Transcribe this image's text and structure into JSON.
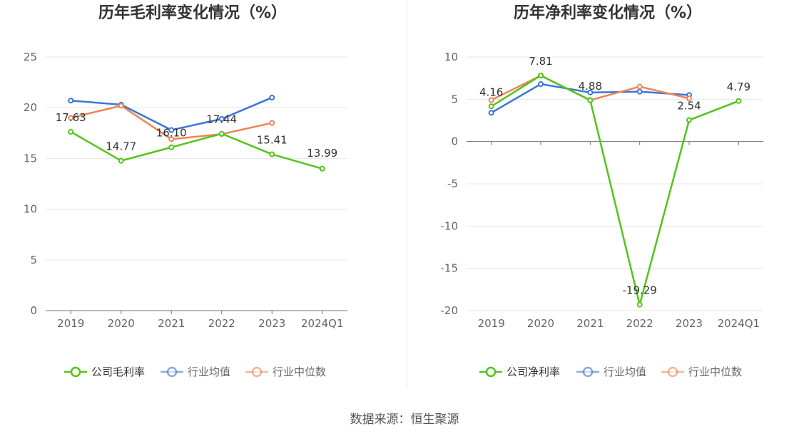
{
  "source_text": "数据来源：恒生聚源",
  "chart_data": [
    {
      "type": "line",
      "title": "历年毛利率变化情况（%）",
      "categories": [
        "2019",
        "2020",
        "2021",
        "2022",
        "2023",
        "2024Q1"
      ],
      "ylim": [
        0,
        25
      ],
      "yticks": [
        0,
        5,
        10,
        15,
        20,
        25
      ],
      "grid": true,
      "legend_position": "bottom",
      "series": [
        {
          "name": "公司毛利率",
          "color": "#52c41a",
          "values": [
            17.63,
            14.77,
            16.1,
            17.44,
            15.41,
            13.99
          ],
          "labels": [
            "17.63",
            "14.77",
            "16.10",
            "17.44",
            "15.41",
            "13.99"
          ]
        },
        {
          "name": "行业均值",
          "color": "#3a75d9",
          "values": [
            20.7,
            20.3,
            17.8,
            18.9,
            21.0,
            null
          ]
        },
        {
          "name": "行业中位数",
          "color": "#ee8458",
          "values": [
            19.0,
            20.2,
            16.9,
            17.4,
            18.5,
            null
          ]
        }
      ]
    },
    {
      "type": "line",
      "title": "历年净利率变化情况（%）",
      "categories": [
        "2019",
        "2020",
        "2021",
        "2022",
        "2023",
        "2024Q1"
      ],
      "ylim": [
        -20,
        10
      ],
      "yticks": [
        -20,
        -15,
        -10,
        -5,
        0,
        5,
        10
      ],
      "grid": true,
      "legend_position": "bottom",
      "series": [
        {
          "name": "公司净利率",
          "color": "#52c41a",
          "values": [
            4.16,
            7.81,
            4.88,
            -19.29,
            2.54,
            4.79
          ],
          "labels": [
            "4.16",
            "7.81",
            "4.88",
            "-19.29",
            "2.54",
            "4.79"
          ]
        },
        {
          "name": "行业均值",
          "color": "#3a75d9",
          "values": [
            3.4,
            6.8,
            5.8,
            5.9,
            5.5,
            null
          ]
        },
        {
          "name": "行业中位数",
          "color": "#ee8458",
          "values": [
            4.9,
            7.8,
            4.9,
            6.5,
            5.1,
            null
          ]
        }
      ]
    }
  ]
}
